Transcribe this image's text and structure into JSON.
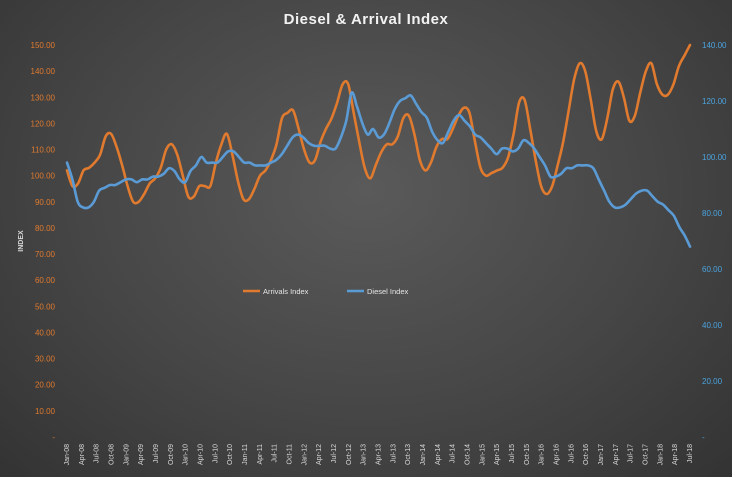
{
  "chart_data": {
    "type": "line",
    "title": "Diesel & Arrival Index",
    "ylabel": "INDEX",
    "ylabel_right": "",
    "y_left_ticks": [
      "-",
      "10.00",
      "20.00",
      "30.00",
      "40.00",
      "50.00",
      "60.00",
      "70.00",
      "80.00",
      "90.00",
      "100.00",
      "110.00",
      "120.00",
      "130.00",
      "140.00",
      "150.00"
    ],
    "y_right_ticks": [
      "-",
      "20.00",
      "40.00",
      "60.00",
      "80.00",
      "100.00",
      "120.00",
      "140.00"
    ],
    "ylim_left": [
      0,
      150
    ],
    "ylim_right": [
      0,
      140
    ],
    "x_tick_labels": [
      "Jan-08",
      "Apr-08",
      "Jul-08",
      "Oct-08",
      "Jan-09",
      "Apr-09",
      "Jul-09",
      "Oct-09",
      "Jan-10",
      "Apr-10",
      "Jul-10",
      "Oct-10",
      "Jan-11",
      "Apr-11",
      "Jul-11",
      "Oct-11",
      "Jan-12",
      "Apr-12",
      "Jul-12",
      "Oct-12",
      "Jan-13",
      "Apr-13",
      "Jul-13",
      "Oct-13",
      "Jan-14",
      "Apr-14",
      "Jul-14",
      "Oct-14",
      "Jan-15",
      "Apr-15",
      "Jul-15",
      "Oct-15",
      "Jan-16",
      "Apr-16",
      "Jul-16",
      "Oct-16",
      "Jan-17",
      "Apr-17",
      "Jul-17",
      "Oct-17",
      "Jan-18",
      "Apr-18",
      "Jul-18"
    ],
    "legend_position": "center",
    "grid": false,
    "series": [
      {
        "name": "Arrivals  Index",
        "axis": "left",
        "color": "#e07a2e",
        "values": [
          102,
          96,
          97,
          102,
          103,
          105,
          108,
          115,
          116,
          111,
          104,
          96,
          90,
          90,
          93,
          97,
          99,
          103,
          110,
          112,
          108,
          100,
          92,
          92,
          96,
          96,
          96,
          105,
          112,
          116,
          108,
          98,
          91,
          91,
          95,
          100,
          102,
          106,
          112,
          122,
          124,
          125,
          118,
          110,
          105,
          106,
          113,
          118,
          122,
          128,
          135,
          135,
          124,
          113,
          103,
          99,
          104,
          109,
          112,
          112,
          115,
          122,
          123,
          116,
          106,
          102,
          105,
          111,
          114,
          114,
          118,
          123,
          126,
          124,
          113,
          103,
          100,
          101,
          102,
          103,
          107,
          116,
          128,
          129,
          118,
          106,
          96,
          93,
          96,
          104,
          113,
          125,
          137,
          143,
          140,
          129,
          117,
          114,
          122,
          133,
          136,
          130,
          121,
          123,
          132,
          140,
          143,
          135,
          131,
          131,
          135,
          142,
          146,
          150
        ]
      },
      {
        "name": "Diesel Index",
        "axis": "right",
        "color": "#5b9bd5",
        "values": [
          98,
          92,
          84,
          82,
          82,
          84,
          88,
          89,
          90,
          90,
          91,
          92,
          92,
          91,
          92,
          92,
          93,
          93,
          94,
          96,
          95,
          92,
          91,
          95,
          97,
          100,
          98,
          98,
          98,
          100,
          102,
          102,
          100,
          98,
          98,
          97,
          97,
          97,
          98,
          99,
          101,
          104,
          107,
          108,
          107,
          105,
          104,
          104,
          104,
          103,
          103,
          107,
          113,
          123,
          118,
          112,
          108,
          110,
          107,
          108,
          112,
          117,
          120,
          121,
          122,
          119,
          116,
          114,
          109,
          106,
          105,
          109,
          113,
          115,
          113,
          111,
          108,
          107,
          105,
          103,
          101,
          103,
          103,
          102,
          103,
          106,
          105,
          103,
          100,
          97,
          93,
          93,
          94,
          96,
          96,
          97,
          97,
          97,
          96,
          92,
          88,
          84,
          82,
          82,
          83,
          85,
          87,
          88,
          88,
          86,
          84,
          83,
          81,
          79,
          75,
          72,
          68
        ]
      }
    ]
  }
}
